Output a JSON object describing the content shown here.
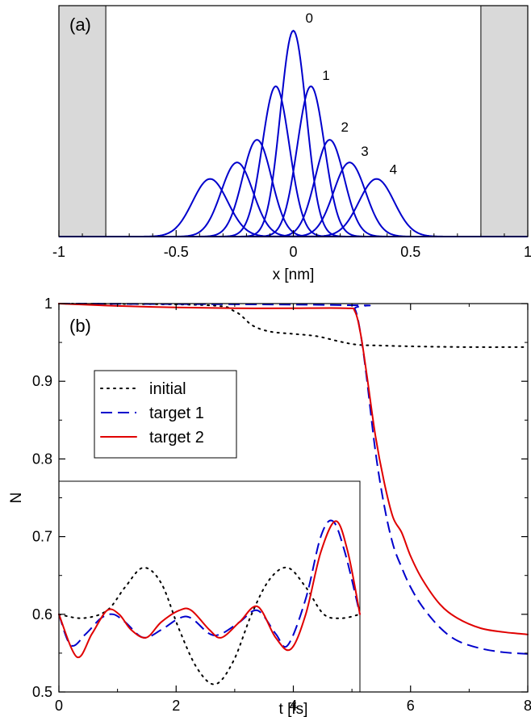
{
  "chart_data": [
    {
      "panel_label": "(a)",
      "type": "line",
      "xlabel": "x [nm]",
      "ylabel": "",
      "xlim": [
        -1,
        1
      ],
      "xticks": [
        "-1",
        "-0.5",
        "0",
        "0.5",
        "1"
      ],
      "shaded_regions": [
        [
          -1,
          -0.8
        ],
        [
          0.8,
          1
        ]
      ],
      "colors": {
        "curves": "#0000cc",
        "shade": "#d9d9d9"
      },
      "grid": false,
      "series_labels": [
        "0",
        "1",
        "2",
        "3",
        "4"
      ],
      "states": [
        {
          "name": "0",
          "center": 0.0,
          "width": 0.055,
          "peak": 1.0
        },
        {
          "name": "1",
          "center": 0.075,
          "width": 0.058,
          "peak": 0.73
        },
        {
          "name": "2",
          "center": 0.155,
          "width": 0.062,
          "peak": 0.47
        },
        {
          "name": "3",
          "center": 0.24,
          "width": 0.068,
          "peak": 0.36
        },
        {
          "name": "4",
          "center": 0.355,
          "width": 0.075,
          "peak": 0.28
        }
      ]
    },
    {
      "panel_label": "(b)",
      "type": "line",
      "xlabel": "t [fs]",
      "ylabel": "N",
      "xlim": [
        0,
        8
      ],
      "ylim": [
        0.5,
        1.0
      ],
      "xticks": [
        "0",
        "2",
        "4",
        "6",
        "8"
      ],
      "yticks": [
        "0.5",
        "0.6",
        "0.7",
        "0.8",
        "0.9",
        "1"
      ],
      "legend": {
        "position": "upper-left",
        "entries": [
          "initial",
          "target 1",
          "target 2"
        ]
      },
      "grid": false,
      "series": [
        {
          "name": "initial",
          "style": "dotted",
          "color": "#000000",
          "x": [
            0,
            2.5,
            3.0,
            3.3,
            3.6,
            4.0,
            4.4,
            4.8,
            5.1,
            5.5,
            6,
            7,
            8
          ],
          "y": [
            1.0,
            0.998,
            0.99,
            0.972,
            0.964,
            0.961,
            0.958,
            0.951,
            0.947,
            0.946,
            0.945,
            0.944,
            0.944
          ]
        },
        {
          "name": "target 1",
          "style": "dashed",
          "color": "#0000cc",
          "x": [
            0,
            4.9,
            5.05,
            5.15,
            5.25,
            5.4,
            5.55,
            5.7,
            5.85,
            6.0,
            6.2,
            6.5,
            6.8,
            7.2,
            7.6,
            8.0
          ],
          "y": [
            1.0,
            0.998,
            0.993,
            0.96,
            0.905,
            0.81,
            0.74,
            0.69,
            0.66,
            0.635,
            0.61,
            0.583,
            0.566,
            0.556,
            0.551,
            0.549
          ]
        },
        {
          "name": "target 2",
          "style": "solid",
          "color": "#e00000",
          "x": [
            0,
            1.0,
            2.0,
            3.0,
            4.0,
            4.9,
            5.05,
            5.15,
            5.25,
            5.4,
            5.55,
            5.7,
            5.85,
            6.0,
            6.2,
            6.5,
            6.8,
            7.2,
            7.6,
            8.0
          ],
          "y": [
            1.0,
            0.997,
            0.995,
            0.994,
            0.994,
            0.994,
            0.99,
            0.96,
            0.91,
            0.83,
            0.77,
            0.725,
            0.705,
            0.675,
            0.645,
            0.613,
            0.595,
            0.582,
            0.577,
            0.574
          ]
        }
      ],
      "inset": {
        "description_free": true,
        "x_range_fraction": [
          0,
          1
        ],
        "series": [
          {
            "name": "initial",
            "style": "dotted",
            "color": "#000000",
            "x": [
              0,
              0.4,
              0.8,
              1.1,
              1.4,
              1.7,
              2.0,
              2.3,
              2.6,
              2.9,
              3.2,
              3.5,
              3.8,
              4.1,
              4.4,
              4.7,
              5.0
            ],
            "y": [
              0.6,
              0.595,
              0.605,
              0.635,
              0.66,
              0.64,
              0.58,
              0.53,
              0.51,
              0.54,
              0.6,
              0.645,
              0.66,
              0.635,
              0.6,
              0.595,
              0.6
            ]
          },
          {
            "name": "target 1",
            "style": "dashed",
            "color": "#0000cc",
            "x": [
              0,
              0.2,
              0.45,
              0.7,
              0.9,
              1.1,
              1.4,
              1.7,
              2.0,
              2.2,
              2.5,
              2.7,
              3.0,
              3.3,
              3.6,
              3.8,
              4.1,
              4.35,
              4.55,
              4.75,
              5.0
            ],
            "y": [
              0.6,
              0.56,
              0.575,
              0.595,
              0.6,
              0.59,
              0.57,
              0.58,
              0.595,
              0.595,
              0.575,
              0.575,
              0.59,
              0.605,
              0.575,
              0.56,
              0.62,
              0.7,
              0.72,
              0.68,
              0.6
            ]
          },
          {
            "name": "target 2",
            "style": "solid",
            "color": "#e00000",
            "x": [
              0,
              0.3,
              0.55,
              0.8,
              1.0,
              1.2,
              1.45,
              1.7,
              2.0,
              2.2,
              2.5,
              2.7,
              3.0,
              3.3,
              3.6,
              3.85,
              4.1,
              4.35,
              4.6,
              4.8,
              5.0
            ],
            "y": [
              0.6,
              0.545,
              0.575,
              0.605,
              0.6,
              0.58,
              0.57,
              0.59,
              0.605,
              0.605,
              0.58,
              0.57,
              0.59,
              0.61,
              0.57,
              0.555,
              0.6,
              0.68,
              0.72,
              0.68,
              0.6
            ]
          }
        ]
      }
    }
  ]
}
